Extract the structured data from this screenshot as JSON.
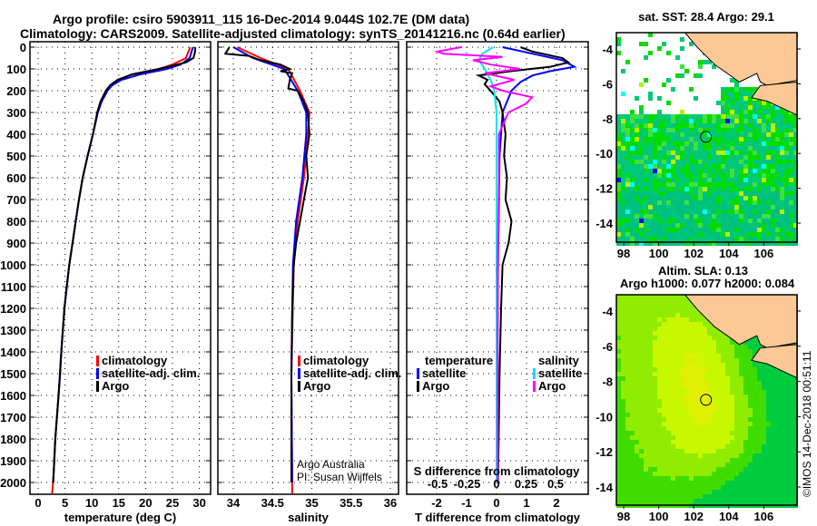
{
  "title_line1": "Argo profile: csiro 5903911_115 16-Dec-2014 9.044S 102.7E (DM data)",
  "title_line2": "Climatology: CARS2009. Satellite-adjusted climatology: synTS_20141216.nc (0.64d earlier)",
  "colors": {
    "climatology": "#ff0000",
    "satellite": "#0000ff",
    "argo": "#000000",
    "sal_sat": "#00e5ee",
    "sal_argo": "#ff00ff",
    "land": "#fcc896"
  },
  "credit": [
    "Argo Australia",
    "PI: Susan Wijffels"
  ],
  "watermark": "©IMOS 14-Dec-2018 00:51:11",
  "chart_data": [
    {
      "type": "line",
      "xlabel": "temperature (deg C)",
      "ylabel": "depth",
      "xlim": [
        -1.5,
        32
      ],
      "ylim": [
        2050,
        0
      ],
      "xticks": [
        "0",
        "5",
        "10",
        "15",
        "20",
        "25",
        "30"
      ],
      "xtick_values": [
        0,
        5,
        10,
        15,
        20,
        25,
        30
      ],
      "yticks": [
        "0",
        "100",
        "200",
        "300",
        "400",
        "500",
        "600",
        "700",
        "800",
        "900",
        "1000",
        "1100",
        "1200",
        "1300",
        "1400",
        "1500",
        "1600",
        "1700",
        "1800",
        "1900",
        "2000"
      ],
      "legend": [
        "climatology",
        "satellite-adj. clim.",
        "Argo"
      ],
      "series": [
        {
          "name": "climatology",
          "color": "#ff0000",
          "depth": [
            0,
            50,
            80,
            100,
            125,
            150,
            175,
            200,
            250,
            300,
            400,
            500,
            600,
            700,
            800,
            900,
            1000,
            1200,
            1400,
            1600,
            1800,
            2000,
            2050
          ],
          "values": [
            28.3,
            27.5,
            25,
            22.5,
            17.5,
            14.8,
            13.5,
            12.8,
            11.8,
            11.1,
            10.2,
            9.2,
            8.3,
            7.6,
            7,
            6.4,
            5.8,
            4.9,
            4.3,
            3.8,
            3.2,
            2.8,
            2.6
          ]
        },
        {
          "name": "satellite-adj. clim.",
          "color": "#0000ff",
          "depth": [
            0,
            50,
            80,
            100,
            125,
            150,
            175,
            200,
            250,
            300,
            400,
            500,
            600,
            700,
            800,
            900,
            1000,
            1200,
            1400,
            1600,
            1800,
            2000
          ],
          "values": [
            28.8,
            28.2,
            26.5,
            24,
            19,
            15.5,
            13.8,
            12.9,
            11.8,
            11.1,
            10.2,
            9.2,
            8.3,
            7.6,
            7,
            6.4,
            5.8,
            4.9,
            4.3,
            3.8,
            3.2,
            2.8
          ]
        },
        {
          "name": "Argo",
          "color": "#000000",
          "depth": [
            0,
            20,
            50,
            70,
            100,
            125,
            150,
            175,
            200,
            250,
            300,
            400,
            500,
            600,
            700,
            800,
            900,
            1000,
            1100,
            1200,
            1300,
            1400,
            1500,
            1600,
            1700,
            1800,
            1900,
            2000
          ],
          "values": [
            29.2,
            29.2,
            28.9,
            27.5,
            22.5,
            17.5,
            14.8,
            13.4,
            12.6,
            11.6,
            11,
            10.2,
            9.2,
            8.3,
            7.6,
            7,
            6.4,
            5.8,
            5.3,
            4.9,
            4.6,
            4.3,
            4.1,
            3.8,
            3.5,
            3.2,
            3,
            2.8
          ]
        }
      ]
    },
    {
      "type": "line",
      "xlabel": "salinity",
      "ylabel": "depth",
      "xlim": [
        33.9,
        36.1
      ],
      "ylim": [
        2050,
        0
      ],
      "xticks": [
        "34",
        "34.5",
        "35",
        "35.5",
        "36"
      ],
      "xtick_values": [
        34,
        34.5,
        35,
        35.5,
        36
      ],
      "legend": [
        "climatology",
        "satellite-adj. clim.",
        "Argo"
      ],
      "series": [
        {
          "name": "climatology",
          "color": "#ff0000",
          "depth": [
            0,
            50,
            100,
            200,
            300,
            400,
            600,
            800,
            1000,
            1500,
            2050
          ],
          "values": [
            34.05,
            34.35,
            34.7,
            34.85,
            34.97,
            34.95,
            34.9,
            34.82,
            34.77,
            34.74,
            34.75
          ]
        },
        {
          "name": "satellite-adj. clim.",
          "color": "#0000ff",
          "depth": [
            0,
            50,
            100,
            200,
            300,
            400,
            600,
            800,
            1000,
            1500,
            2000
          ],
          "values": [
            34.0,
            34.25,
            34.65,
            34.82,
            34.93,
            34.93,
            34.88,
            34.8,
            34.76,
            34.74,
            34.75
          ]
        },
        {
          "name": "Argo",
          "color": "#000000",
          "depth": [
            0,
            30,
            40,
            60,
            80,
            100,
            110,
            120,
            150,
            190,
            200,
            250,
            300,
            400,
            500,
            600,
            700,
            800,
            900,
            1000,
            1200,
            1500,
            2000
          ],
          "values": [
            33.95,
            33.9,
            34.2,
            34.35,
            34.6,
            34.72,
            34.6,
            34.75,
            34.72,
            34.7,
            34.82,
            34.9,
            34.95,
            34.97,
            34.93,
            34.95,
            34.9,
            34.85,
            34.8,
            34.77,
            34.75,
            34.74,
            34.74
          ]
        }
      ]
    },
    {
      "type": "line",
      "xlabel": "T difference from climatology",
      "x2label": "S difference from climatology",
      "ylabel": "depth",
      "xlim": [
        -3,
        3
      ],
      "x2lim": [
        -0.75,
        0.75
      ],
      "ylim": [
        2050,
        0
      ],
      "xticks": [
        "-2",
        "-1",
        "0",
        "1",
        "2"
      ],
      "xtick_values": [
        -2,
        -1,
        0,
        1,
        2
      ],
      "x2ticks": [
        "-0.5",
        "-0.25",
        "0",
        "0.25",
        "0.5"
      ],
      "x2tick_values": [
        -0.5,
        -0.25,
        0,
        0.25,
        0.5
      ],
      "legend_t_title": "temperature",
      "legend_s_title": "salinity",
      "legend_t": [
        "satellite",
        "Argo"
      ],
      "legend_s": [
        "satellite",
        "Argo"
      ],
      "series": [
        {
          "name": "T satellite",
          "axis": "T",
          "color": "#0000ff",
          "depth": [
            0,
            30,
            60,
            90,
            110,
            130,
            160,
            200,
            300,
            500,
            1000,
            2000
          ],
          "values": [
            0.2,
            1.2,
            2.2,
            2.6,
            1.8,
            1.2,
            0.8,
            0.5,
            0.2,
            0.1,
            0.05,
            0
          ]
        },
        {
          "name": "T Argo",
          "axis": "T",
          "color": "#000000",
          "depth": [
            0,
            20,
            50,
            70,
            90,
            110,
            130,
            150,
            170,
            200,
            250,
            300,
            400,
            500,
            600,
            700,
            800,
            900,
            1000,
            1200,
            1500,
            2000
          ],
          "values": [
            0.8,
            1.2,
            2.2,
            2.4,
            1.8,
            0.5,
            -0.6,
            -0.3,
            -0.4,
            -0.2,
            0.1,
            0.2,
            0.3,
            0.25,
            0.35,
            0.3,
            0.5,
            0.4,
            0.2,
            0.15,
            0.1,
            0.05
          ]
        },
        {
          "name": "S satellite",
          "axis": "S",
          "color": "#00e5ee",
          "depth": [
            0,
            30,
            60,
            100,
            150,
            200,
            300,
            500,
            1000,
            2000
          ],
          "values": [
            -0.03,
            -0.12,
            -0.15,
            -0.1,
            -0.05,
            -0.02,
            0,
            0,
            0,
            0
          ]
        },
        {
          "name": "S Argo",
          "axis": "S",
          "color": "#ff00ff",
          "depth": [
            0,
            20,
            30,
            45,
            60,
            80,
            100,
            120,
            150,
            180,
            200,
            230,
            260,
            300,
            400,
            600,
            1000,
            2000
          ],
          "values": [
            -0.3,
            -0.5,
            -0.45,
            0.05,
            -0.2,
            -0.05,
            0.2,
            -0.1,
            0.15,
            -0.05,
            0.05,
            0.3,
            0.25,
            0.1,
            0.02,
            0.02,
            0.01,
            0.01
          ]
        }
      ]
    },
    {
      "type": "heatmap",
      "title": "sat. SST: 28.4 Argo: 29.1",
      "xticks": [
        "98",
        "100",
        "102",
        "104",
        "106"
      ],
      "yticks": [
        "-4",
        "-6",
        "-8",
        "-10",
        "-12",
        "-14"
      ],
      "float_position": {
        "lon": 102.7,
        "lat": -9.044
      }
    },
    {
      "type": "heatmap",
      "title_line1": "Altim. SLA: 0.13",
      "title_line2": "Argo h1000: 0.077 h2000: 0.084",
      "xticks": [
        "98",
        "100",
        "102",
        "104",
        "106"
      ],
      "yticks": [
        "-4",
        "-6",
        "-8",
        "-10",
        "-12",
        "-14"
      ],
      "float_position": {
        "lon": 102.7,
        "lat": -9.044
      }
    }
  ]
}
